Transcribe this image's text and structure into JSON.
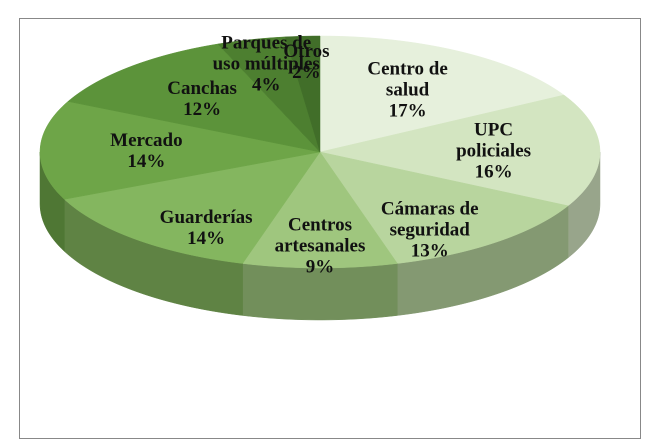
{
  "chart_data": {
    "type": "pie3d",
    "categories": [
      "Centro de salud",
      "UPC policiales",
      "Cámaras de seguridad",
      "Centros artesanales",
      "Guarderías",
      "Mercado",
      "Canchas",
      "Parques de uso múltiples",
      "Otros"
    ],
    "values": [
      17,
      16,
      13,
      9,
      14,
      14,
      12,
      4,
      2
    ],
    "value_labels": [
      "17%",
      "16%",
      "13%",
      "9%",
      "14%",
      "14%",
      "12%",
      "4%",
      "2%"
    ],
    "colors": [
      "#e6f0dc",
      "#d3e5c1",
      "#b8d59e",
      "#9fc67e",
      "#84b65f",
      "#6ea548",
      "#5c933a",
      "#4d7f30",
      "#416e29"
    ]
  }
}
